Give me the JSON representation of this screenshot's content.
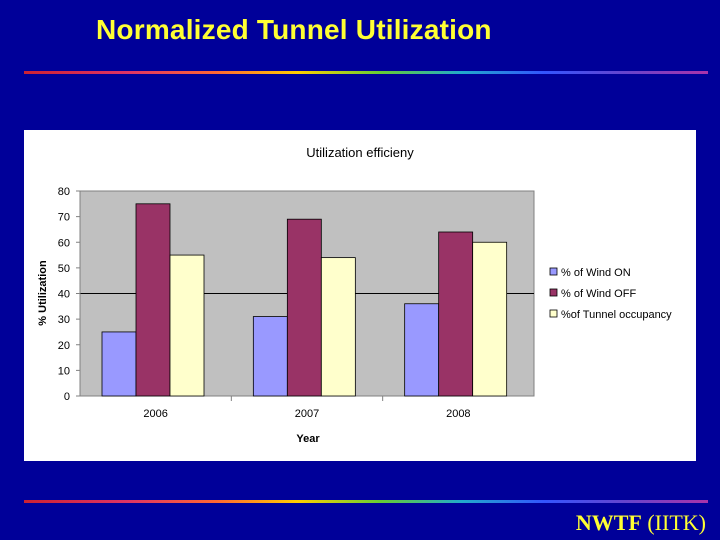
{
  "slide": {
    "title": "Normalized Tunnel Utilization",
    "footer_bold": "NWTF",
    "footer_rest": " (IITK)"
  },
  "colors": {
    "background": "#000099",
    "title": "#ffff33",
    "plot_area": "#c0c0c0"
  },
  "chart_data": {
    "type": "bar",
    "title": "Utilization efficieny",
    "xlabel": "Year",
    "ylabel": "% Utilization",
    "categories": [
      "2006",
      "2007",
      "2008"
    ],
    "series": [
      {
        "name": "% of Wind ON",
        "values": [
          25,
          31,
          36
        ],
        "color": "#9999ff"
      },
      {
        "name": "% of Wind OFF",
        "values": [
          75,
          69,
          64
        ],
        "color": "#993366"
      },
      {
        "name": "%of Tunnel occupancy",
        "values": [
          55,
          54,
          60
        ],
        "color": "#ffffcc"
      }
    ],
    "ylim": [
      0,
      80
    ],
    "yticks": [
      0,
      10,
      20,
      30,
      40,
      50,
      60,
      70,
      80
    ],
    "gridlines": [
      40,
      80
    ],
    "legend_position": "right"
  }
}
